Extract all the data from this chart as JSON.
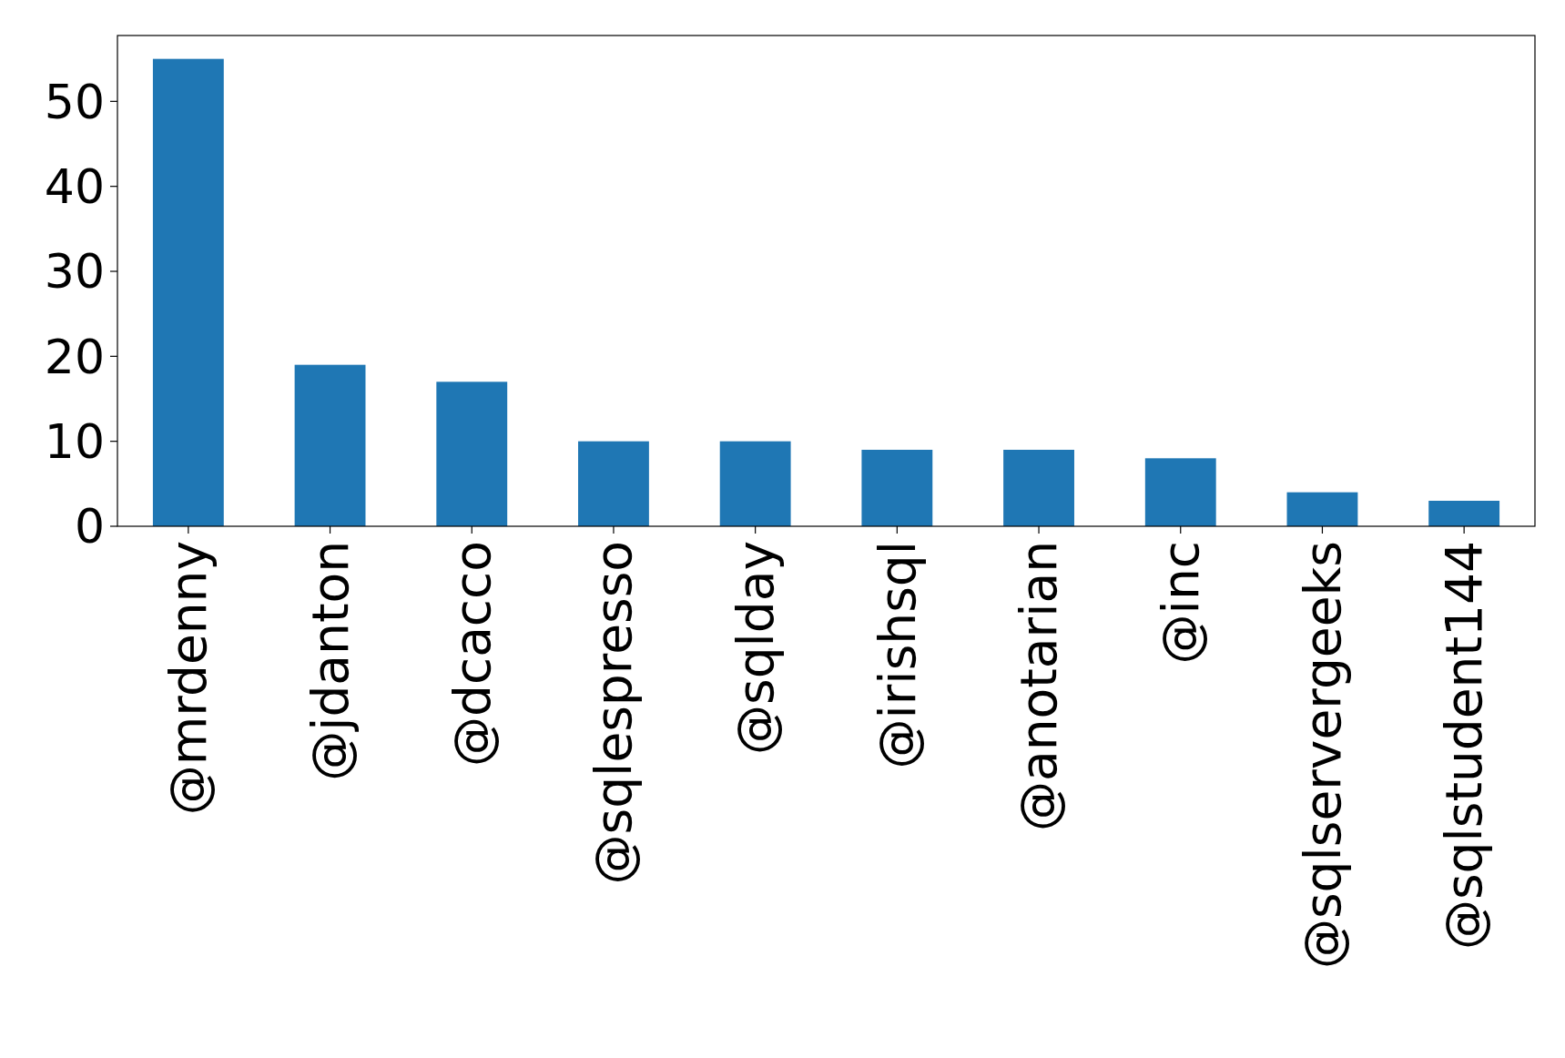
{
  "chart_data": {
    "type": "bar",
    "categories": [
      "@mrdenny",
      "@jdanton",
      "@dcacco",
      "@sqlespresso",
      "@sqlday",
      "@irishsql",
      "@anotarian",
      "@inc",
      "@sqlservergeeks",
      "@sqlstudent144"
    ],
    "values": [
      55,
      19,
      17,
      10,
      10,
      9,
      9,
      8,
      4,
      3
    ],
    "color": "#1f77b4",
    "ylim": [
      0,
      57.75
    ],
    "yticks": [
      0,
      10,
      20,
      30,
      40,
      50
    ],
    "grid": false
  }
}
